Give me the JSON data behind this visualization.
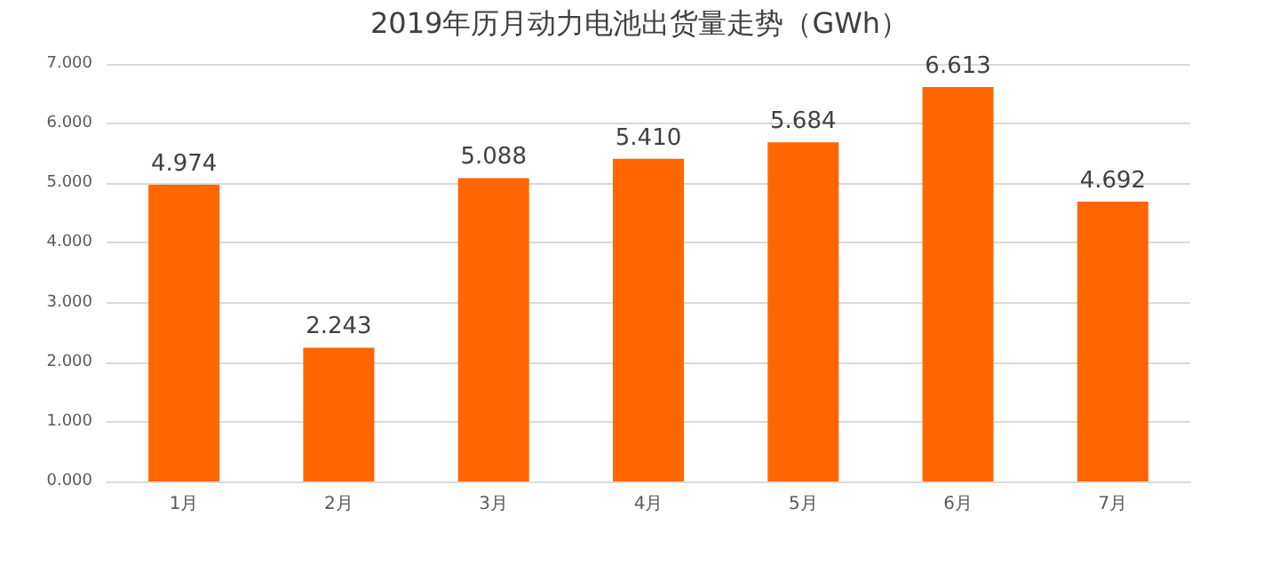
{
  "chart_data": {
    "type": "bar",
    "title": "2019年历月动力电池出货量走势（GWh）",
    "categories": [
      "1月",
      "2月",
      "3月",
      "4月",
      "5月",
      "6月",
      "7月"
    ],
    "values": [
      4.974,
      2.243,
      5.088,
      5.41,
      5.684,
      6.613,
      4.692
    ],
    "value_labels": [
      "4.974",
      "2.243",
      "5.088",
      "5.410",
      "5.684",
      "6.613",
      "4.692"
    ],
    "color": "#ff6600",
    "ylim": [
      0,
      7
    ],
    "yticks": [
      {
        "value": 0,
        "label": "0.000"
      },
      {
        "value": 1,
        "label": "1.000"
      },
      {
        "value": 2,
        "label": "2.000"
      },
      {
        "value": 3,
        "label": "3.000"
      },
      {
        "value": 4,
        "label": "4.000"
      },
      {
        "value": 5,
        "label": "5.000"
      },
      {
        "value": 6,
        "label": "6.000"
      },
      {
        "value": 7,
        "label": "7.000"
      }
    ],
    "grid": "y"
  }
}
